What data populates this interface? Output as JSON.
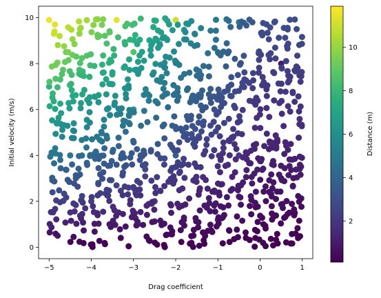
{
  "chart_data": {
    "type": "scatter",
    "xlabel": "Drag coefficient",
    "ylabel": "Initial velocity (m/s)",
    "colorbar_label": "Distance (m)",
    "xlim": [
      -5.25,
      1.25
    ],
    "ylim": [
      -0.5,
      10.5
    ],
    "clim": [
      0.1,
      11.9
    ],
    "x_ticks": [
      -5,
      -4,
      -3,
      -2,
      -1,
      0,
      1
    ],
    "x_tick_labels": [
      "−5",
      "−4",
      "−3",
      "−2",
      "−1",
      "0",
      "1"
    ],
    "y_ticks": [
      0,
      2,
      4,
      6,
      8,
      10
    ],
    "y_tick_labels": [
      "0",
      "2",
      "4",
      "6",
      "8",
      "10"
    ],
    "colorbar_ticks": [
      2,
      4,
      6,
      8,
      10
    ],
    "colorbar_tick_labels": [
      "2",
      "4",
      "6",
      "8",
      "10"
    ],
    "colormap": "viridis",
    "grid": false,
    "legend": "none",
    "point_count": 1000,
    "x_range": [
      -5,
      1
    ],
    "y_range": [
      0,
      10
    ],
    "color_variable": "distance",
    "color_encoding": "distance grows with initial velocity and with more negative drag coefficient; ≈12 at x=−5, y=10 and ≈0 along y=0 or x≥0",
    "sample_points": [
      {
        "x": -5.0,
        "y": 9.9,
        "distance": 11.6
      },
      {
        "x": -3.4,
        "y": 9.9,
        "distance": 11.5
      },
      {
        "x": -2.0,
        "y": 9.9,
        "distance": 11.0
      },
      {
        "x": -4.6,
        "y": 8.5,
        "distance": 9.3
      },
      {
        "x": -3.0,
        "y": 8.5,
        "distance": 8.7
      },
      {
        "x": -1.0,
        "y": 8.5,
        "distance": 6.2
      },
      {
        "x": -5.0,
        "y": 7.0,
        "distance": 7.8
      },
      {
        "x": -3.0,
        "y": 6.0,
        "distance": 6.0
      },
      {
        "x": -1.5,
        "y": 6.5,
        "distance": 5.6
      },
      {
        "x": -0.5,
        "y": 9.8,
        "distance": 5.1
      },
      {
        "x": -4.5,
        "y": 4.0,
        "distance": 4.6
      },
      {
        "x": -2.0,
        "y": 4.0,
        "distance": 3.8
      },
      {
        "x": -0.5,
        "y": 4.0,
        "distance": 2.2
      },
      {
        "x": -4.0,
        "y": 2.0,
        "distance": 2.4
      },
      {
        "x": -2.5,
        "y": 2.0,
        "distance": 2.0
      },
      {
        "x": -1.0,
        "y": 1.2,
        "distance": 1.0
      },
      {
        "x": 0.5,
        "y": 8.0,
        "distance": 1.0
      },
      {
        "x": 0.5,
        "y": 3.0,
        "distance": 0.5
      },
      {
        "x": -4.8,
        "y": 0.5,
        "distance": 0.9
      },
      {
        "x": 0.9,
        "y": 0.4,
        "distance": 0.1
      }
    ]
  }
}
